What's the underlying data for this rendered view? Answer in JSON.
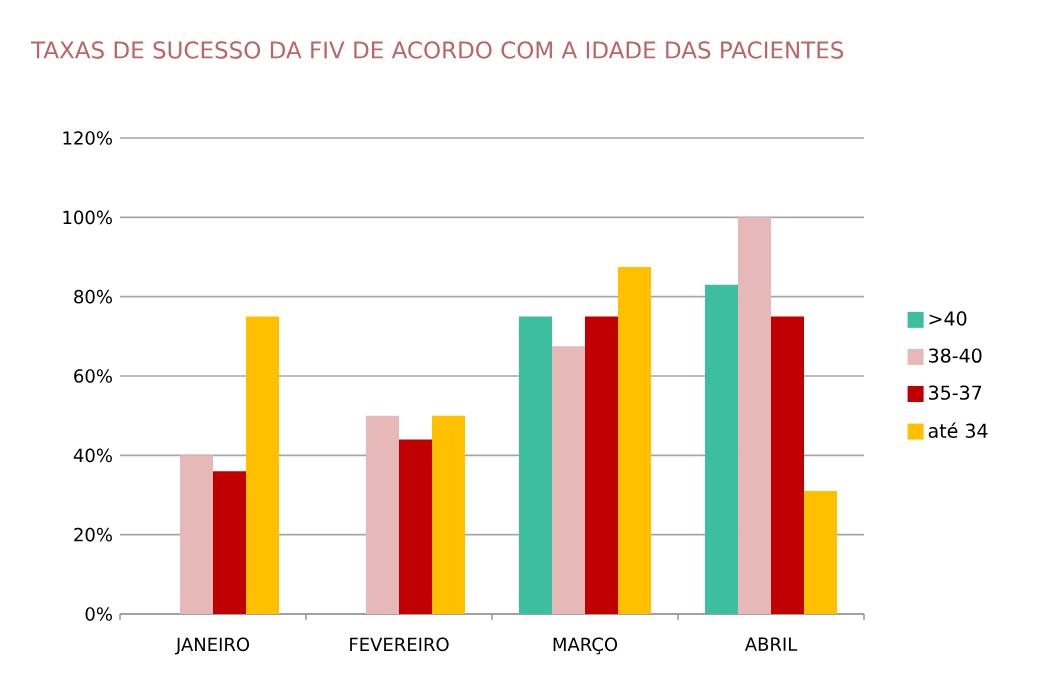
{
  "chart_data": {
    "type": "bar",
    "title": "TAXAS DE SUCESSO DA FIV DE ACORDO COM A IDADE DAS PACIENTES",
    "categories": [
      "JANEIRO",
      "FEVEREIRO",
      "MARÇO",
      "ABRIL"
    ],
    "series": [
      {
        "name": ">40",
        "color": "#3dbf9f",
        "values": [
          null,
          null,
          75,
          83
        ]
      },
      {
        "name": "38-40",
        "color": "#e6b9b8",
        "values": [
          40,
          50,
          67.5,
          100
        ]
      },
      {
        "name": "35-37",
        "color": "#c00000",
        "values": [
          36,
          44,
          75,
          75
        ]
      },
      {
        "name": "até 34",
        "color": "#ffc000",
        "values": [
          75,
          50,
          87.5,
          31
        ]
      }
    ],
    "ylim": [
      0,
      120
    ],
    "yticks": [
      {
        "value": 0,
        "label": "0%"
      },
      {
        "value": 20,
        "label": "20%"
      },
      {
        "value": 40,
        "label": "40%"
      },
      {
        "value": 60,
        "label": "60%"
      },
      {
        "value": 80,
        "label": "80%"
      },
      {
        "value": 100,
        "label": "100%"
      },
      {
        "value": 120,
        "label": "120%"
      }
    ],
    "grid": "y",
    "legend": "right"
  }
}
